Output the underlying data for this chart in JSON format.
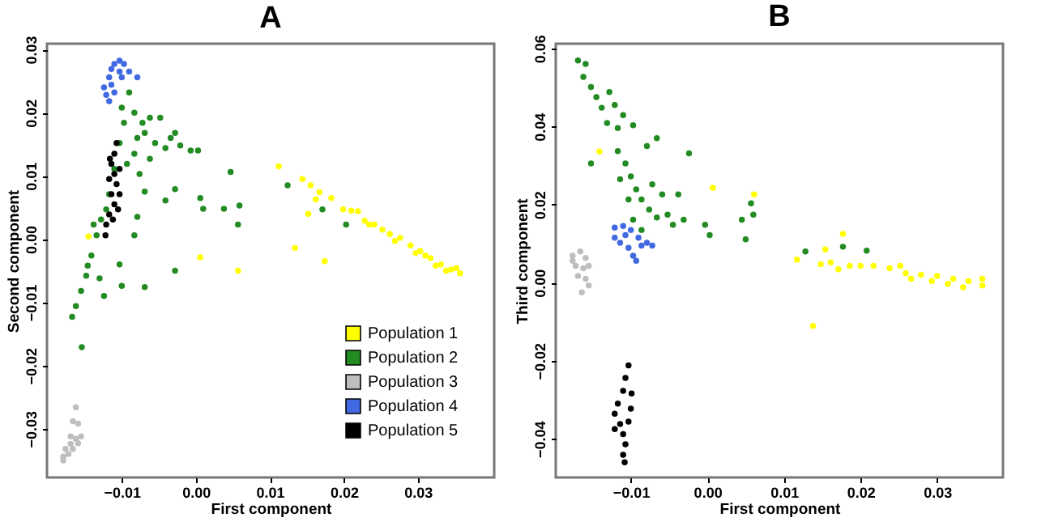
{
  "chart_data": [
    {
      "type": "scatter",
      "title": "A",
      "xlabel": "First component",
      "ylabel": "Second component",
      "xlim": [
        -0.0201,
        0.0403
      ],
      "ylim": [
        -0.0377,
        0.0309
      ],
      "xticks": [
        -0.01,
        {
          "value": 0,
          "label": "0.00"
        },
        0.01,
        0.02,
        0.03
      ],
      "yticks": [
        -0.03,
        -0.02,
        -0.01,
        {
          "value": 0,
          "label": "0.00"
        },
        0.01,
        0.02,
        0.03
      ],
      "legend": "bottom right",
      "marker": "circle",
      "grid": false,
      "series": [
        {
          "name": "Population 1",
          "color": "#ffff00",
          "x": [
            0.0112,
            0.0144,
            0.0155,
            0.0167,
            0.0162,
            0.0183,
            0.0152,
            0.0199,
            0.021,
            0.0219,
            0.0134,
            0.0174,
            0.0057,
            0.0006,
            -0.0145,
            0.0228,
            0.0241,
            0.0262,
            0.0276,
            0.029,
            0.0303,
            0.0317,
            0.0331,
            0.0345,
            0.0357,
            0.0269,
            0.0297,
            0.0324,
            0.0352,
            0.031,
            0.0252,
            0.0234,
            0.0338
          ],
          "values": [
            0.0115,
            0.0095,
            0.0085,
            0.0074,
            0.0063,
            0.0065,
            0.004,
            0.0047,
            0.0045,
            0.0044,
            -0.0014,
            -0.0035,
            -0.005,
            -0.0029,
            0.0004,
            0.0029,
            0.0023,
            0.0008,
            0.0002,
            -0.001,
            -0.0019,
            -0.003,
            -0.004,
            -0.0048,
            -0.0054,
            -0.0003,
            -0.0022,
            -0.0042,
            -0.0046,
            -0.0026,
            0.0015,
            0.0023,
            -0.005
          ]
        },
        {
          "name": "Population 2",
          "color": "#228b22",
          "x": [
            -0.0167,
            -0.0162,
            -0.0155,
            -0.0148,
            -0.0141,
            -0.0134,
            -0.0128,
            -0.0138,
            -0.0154,
            -0.0146,
            -0.013,
            -0.0124,
            -0.0117,
            -0.0121,
            -0.011,
            -0.0103,
            -0.0097,
            -0.01,
            -0.009,
            -0.0083,
            -0.0072,
            -0.0062,
            -0.0048,
            -0.0069,
            -0.0079,
            -0.0055,
            -0.0034,
            -0.0028,
            -0.0021,
            -0.0007,
            0.0003,
            -0.0041,
            -0.0062,
            -0.0083,
            -0.0093,
            -0.0076,
            -0.0069,
            -0.0041,
            -0.0028,
            0.0006,
            0.001,
            0.0047,
            0.0038,
            0.0059,
            0.0057,
            0.0124,
            0.0171,
            0.0203,
            -0.0028,
            -0.0069,
            -0.01,
            -0.0103,
            -0.0083,
            -0.0079
          ],
          "values": [
            -0.0123,
            -0.0106,
            -0.0082,
            -0.0058,
            -0.0026,
            0.0006,
            0.0031,
            0.0023,
            -0.0171,
            -0.0042,
            -0.0062,
            -0.009,
            0.0071,
            0.0047,
            0.0111,
            0.0152,
            0.0184,
            0.0208,
            0.0232,
            0.02,
            0.0184,
            0.0192,
            0.0192,
            0.0168,
            0.016,
            0.0152,
            0.016,
            0.0168,
            0.0148,
            0.014,
            0.014,
            0.0144,
            0.0127,
            0.0135,
            0.0119,
            0.0103,
            0.0075,
            0.0061,
            0.0079,
            0.0065,
            0.0048,
            0.0106,
            0.0048,
            0.0053,
            0.0023,
            0.0085,
            0.0047,
            0.0023,
            -0.005,
            -0.0076,
            -0.0074,
            -0.004,
            0.0006,
            0.0035
          ]
        },
        {
          "name": "Population 3",
          "color": "#bebebe",
          "x": [
            -0.0162,
            -0.0166,
            -0.0159,
            -0.0179,
            -0.0176,
            -0.0169,
            -0.0162,
            -0.0155,
            -0.0172,
            -0.0166,
            -0.0159,
            -0.0179,
            -0.0169
          ],
          "values": [
            -0.0266,
            -0.0288,
            -0.0292,
            -0.0344,
            -0.0332,
            -0.0324,
            -0.0316,
            -0.0312,
            -0.034,
            -0.0332,
            -0.0323,
            -0.035,
            -0.0312
          ]
        },
        {
          "name": "Population 4",
          "color": "#4169e1",
          "x": [
            -0.0103,
            -0.011,
            -0.0097,
            -0.0114,
            -0.009,
            -0.0079,
            -0.0103,
            -0.0117,
            -0.0124,
            -0.0121,
            -0.0117,
            -0.011,
            -0.0114,
            -0.01
          ],
          "values": [
            0.0282,
            0.0277,
            0.0277,
            0.0269,
            0.0265,
            0.0256,
            0.0265,
            0.0256,
            0.024,
            0.0228,
            0.0218,
            0.0232,
            0.0244,
            0.0256
          ]
        },
        {
          "name": "Population 5",
          "color": "#000000",
          "x": [
            -0.0107,
            -0.011,
            -0.0114,
            -0.011,
            -0.0107,
            -0.0114,
            -0.011,
            -0.0117,
            -0.0121,
            -0.0122,
            -0.0103,
            -0.0103,
            -0.0117,
            -0.0112,
            -0.0105,
            -0.0116
          ],
          "values": [
            0.0152,
            0.0135,
            0.0119,
            0.0103,
            0.0087,
            0.0071,
            0.0055,
            0.0039,
            0.0023,
            0.0006,
            0.0071,
            0.0111,
            0.0095,
            0.0031,
            0.0047,
            0.0127
          ]
        }
      ]
    },
    {
      "type": "scatter",
      "title": "B",
      "xlabel": "First component",
      "ylabel": "Third component",
      "xlim": [
        -0.0198,
        0.0386
      ],
      "ylim": [
        -0.0499,
        0.0612
      ],
      "xticks": [
        -0.01,
        {
          "value": 0,
          "label": "0.00"
        },
        0.01,
        0.02,
        0.03
      ],
      "yticks": [
        -0.04,
        -0.02,
        {
          "value": 0,
          "label": "0.00"
        },
        0.02,
        0.04,
        0.06
      ],
      "marker": "circle",
      "grid": false,
      "series": [
        {
          "color": "#ffff00",
          "x": [
            0.0117,
            0.0154,
            0.0177,
            0.0148,
            0.0161,
            0.0171,
            0.0186,
            0.0138,
            0.0007,
            0.0061,
            -0.0141,
            0.02,
            0.0217,
            0.0238,
            0.0259,
            0.0279,
            0.03,
            0.0321,
            0.0341,
            0.0359,
            0.0359,
            0.0266,
            0.0314,
            0.0293,
            0.0334,
            0.0252
          ],
          "values": [
            0.0059,
            0.0085,
            0.0125,
            0.0047,
            0.0052,
            0.0034,
            0.0043,
            -0.0111,
            0.0243,
            0.0226,
            0.0336,
            0.0043,
            0.0043,
            0.0037,
            0.0024,
            0.002,
            0.0017,
            0.001,
            0.0004,
            -0.0007,
            0.001,
            0.001,
            -0.0003,
            0.0004,
            -0.0012,
            0.0043
          ]
        },
        {
          "color": "#228b22",
          "x": [
            -0.0169,
            -0.0159,
            -0.0162,
            -0.0152,
            -0.0145,
            -0.0138,
            -0.0128,
            -0.0121,
            -0.0131,
            -0.0117,
            -0.011,
            -0.0097,
            -0.0066,
            -0.0079,
            -0.0024,
            -0.0152,
            -0.0117,
            -0.0107,
            -0.01,
            -0.0093,
            -0.0086,
            -0.0076,
            -0.0066,
            -0.0052,
            -0.0038,
            -0.0059,
            -0.0072,
            -0.0045,
            -0.0031,
            -0.0003,
            0.0003,
            -0.0086,
            -0.0097,
            0.0045,
            0.0057,
            0.006,
            0.005,
            0.0128,
            0.0177,
            0.0208,
            -0.0114,
            -0.0103
          ],
          "values": [
            0.0569,
            0.056,
            0.0527,
            0.0501,
            0.0475,
            0.0448,
            0.0488,
            0.0455,
            0.0409,
            0.0396,
            0.0429,
            0.0403,
            0.037,
            0.035,
            0.0331,
            0.0305,
            0.0337,
            0.0305,
            0.0272,
            0.0239,
            0.0213,
            0.0187,
            0.0167,
            0.0174,
            0.0226,
            0.0226,
            0.0252,
            0.0148,
            0.0161,
            0.0148,
            0.0122,
            0.0135,
            0.0161,
            0.0161,
            0.0203,
            0.0174,
            0.0111,
            0.008,
            0.0092,
            0.0082,
            0.0265,
            0.0213
          ]
        },
        {
          "color": "#bebebe",
          "x": [
            -0.0176,
            -0.0166,
            -0.0159,
            -0.0172,
            -0.0162,
            -0.0169,
            -0.0159,
            -0.0155,
            -0.0164,
            -0.0155,
            -0.0176
          ],
          "values": [
            0.0069,
            0.008,
            0.0063,
            0.0043,
            0.0037,
            0.0017,
            0.001,
            -0.0007,
            -0.0025,
            0.0043,
            0.0056
          ]
        },
        {
          "color": "#4169e1",
          "x": [
            -0.0121,
            -0.011,
            -0.01,
            -0.009,
            -0.0079,
            -0.0072,
            -0.0121,
            -0.0114,
            -0.0103,
            -0.0097,
            -0.0093,
            -0.0086,
            -0.0107
          ],
          "values": [
            0.0141,
            0.0145,
            0.0135,
            0.0115,
            0.0102,
            0.0095,
            0.0115,
            0.0102,
            0.0089,
            0.0069,
            0.0056,
            0.0095,
            0.0122
          ]
        },
        {
          "color": "#000000",
          "x": [
            -0.0103,
            -0.0107,
            -0.011,
            -0.0117,
            -0.0121,
            -0.0114,
            -0.011,
            -0.0107,
            -0.011,
            -0.0108,
            -0.01,
            -0.0103,
            -0.0121,
            -0.0099
          ],
          "values": [
            -0.0212,
            -0.0244,
            -0.0277,
            -0.031,
            -0.0336,
            -0.0362,
            -0.0388,
            -0.0414,
            -0.0441,
            -0.046,
            -0.0323,
            -0.0356,
            -0.0375,
            -0.0284
          ]
        }
      ]
    }
  ]
}
